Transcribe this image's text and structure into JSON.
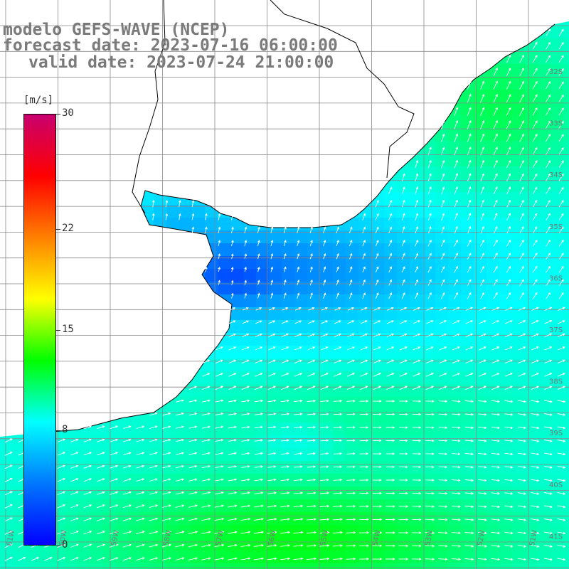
{
  "header": {
    "line1": "modelo GEFS-WAVE (NCEP)",
    "line2": "forecast date: 2023-07-16 06:00:00",
    "line3": "valid date: 2023-07-24 21:00:00"
  },
  "colorbar": {
    "unit": "[m/s]",
    "min": 0,
    "max": 30,
    "ticks": [
      "30",
      "22",
      "15",
      "8",
      "0"
    ],
    "tick_values": [
      30,
      22,
      15,
      8,
      0
    ],
    "colors": [
      "#0000ff",
      "#0078ff",
      "#00ffff",
      "#00ff00",
      "#ffff00",
      "#ff8000",
      "#ff0000",
      "#c8006e"
    ]
  },
  "map": {
    "lon_labels": [
      "61W",
      "60W",
      "59W",
      "58W",
      "57W",
      "56W",
      "55W",
      "54W",
      "53W",
      "52W",
      "51W"
    ],
    "lat_labels": [
      "32S",
      "33S",
      "34S",
      "35S",
      "36S",
      "37S",
      "38S",
      "39S",
      "40S",
      "41S"
    ],
    "land_color": "#ffffff",
    "coast_color": "#000000",
    "grid_color": "#888888"
  }
}
